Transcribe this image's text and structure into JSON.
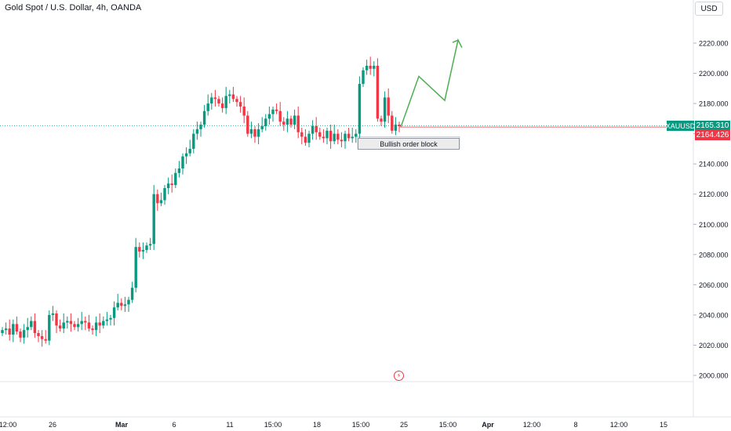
{
  "header": {
    "title": "Gold Spot / U.S. Dollar, 4h, OANDA"
  },
  "currency_button": "USD",
  "symbol_tag": "XAUUSD",
  "last_price": "2165.310",
  "current_price": "2164.426",
  "annotation": "Bullish order block",
  "colors": {
    "up": "#089981",
    "down": "#f23645",
    "projection": "#4caf50"
  },
  "icons": {
    "flash": "lightning-icon"
  },
  "chart_data": {
    "type": "candlestick",
    "title": "Gold Spot / U.S. Dollar, 4h, OANDA",
    "ylim": [
      1990,
      2230
    ],
    "y_ticks": [
      "2220.000",
      "2200.000",
      "2180.000",
      "2160.000",
      "2140.000",
      "2120.000",
      "2100.000",
      "2080.000",
      "2060.000",
      "2040.000",
      "2020.000",
      "2000.000"
    ],
    "x_ticks": [
      "12:00",
      "26",
      "Mar",
      "6",
      "11",
      "15:00",
      "18",
      "15:00",
      "25",
      "15:00",
      "Apr",
      "12:00",
      "8",
      "12:00",
      "15"
    ],
    "last_price": 2165.31,
    "current_price": 2164.426,
    "order_block": {
      "label": "Bullish order block",
      "range": [
        2150,
        2158
      ]
    },
    "projection": [
      2164.4,
      2198,
      2182,
      2222,
      2217
    ],
    "closes": [
      2030,
      2031,
      2027,
      2034,
      2029,
      2025,
      2030,
      2032,
      2036,
      2028,
      2026,
      2024,
      2023,
      2040,
      2041,
      2033,
      2031,
      2035,
      2036,
      2034,
      2032,
      2034,
      2036,
      2035,
      2031,
      2030,
      2035,
      2033,
      2036,
      2037,
      2038,
      2045,
      2048,
      2046,
      2047,
      2050,
      2058,
      2085,
      2082,
      2083,
      2086,
      2087,
      2120,
      2114,
      2116,
      2124,
      2127,
      2126,
      2134,
      2137,
      2145,
      2147,
      2150,
      2160,
      2163,
      2166,
      2175,
      2180,
      2184,
      2183,
      2180,
      2177,
      2185,
      2186,
      2183,
      2181,
      2178,
      2172,
      2160,
      2163,
      2158,
      2163,
      2165,
      2170,
      2173,
      2176,
      2175,
      2168,
      2166,
      2170,
      2166,
      2172,
      2161,
      2158,
      2154,
      2160,
      2165,
      2161,
      2158,
      2157,
      2162,
      2155,
      2160,
      2156,
      2155,
      2160,
      2157,
      2158,
      2160,
      2193,
      2202,
      2205,
      2203,
      2205,
      2170,
      2168,
      2184,
      2172,
      2162,
      2166,
      2165
    ]
  }
}
